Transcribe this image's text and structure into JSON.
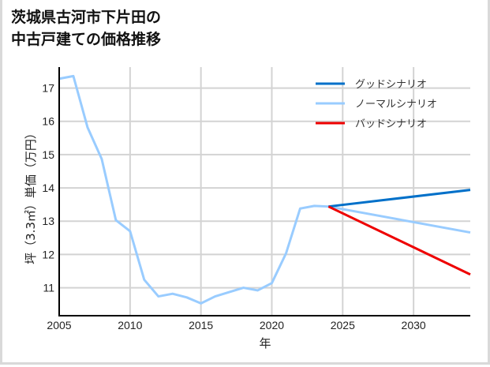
{
  "title": {
    "line1": "茨城県古河市下片田の",
    "line2": "中古戸建ての価格推移"
  },
  "axes": {
    "xlabel": "年",
    "ylabel": "坪（3.3㎡）単価（万円）"
  },
  "legend": [
    {
      "label": "グッドシナリオ",
      "color": "#0070c9"
    },
    {
      "label": "ノーマルシナリオ",
      "color": "#99ccff"
    },
    {
      "label": "バッドシナリオ",
      "color": "#ee0000"
    }
  ],
  "chart_data": {
    "type": "line",
    "title": "茨城県古河市下片田の中古戸建ての価格推移",
    "xlabel": "年",
    "ylabel": "坪（3.3㎡）単価（万円）",
    "xlim": [
      2005,
      2034
    ],
    "ylim": [
      10.16,
      17.63
    ],
    "xticks": [
      2005,
      2010,
      2015,
      2020,
      2025,
      2030
    ],
    "yticks": [
      11,
      12,
      13,
      14,
      15,
      16,
      17
    ],
    "grid": true,
    "legend_position": "upper right",
    "series": [
      {
        "name": "ノーマルシナリオ",
        "color": "#99ccff",
        "x": [
          2005,
          2006,
          2007,
          2008,
          2009,
          2010,
          2011,
          2012,
          2013,
          2014,
          2015,
          2016,
          2017,
          2018,
          2019,
          2020,
          2021,
          2022,
          2023,
          2024,
          2034
        ],
        "values": [
          17.28,
          17.36,
          15.82,
          14.87,
          13.03,
          12.7,
          11.24,
          10.74,
          10.82,
          10.71,
          10.53,
          10.74,
          10.87,
          11.0,
          10.92,
          11.14,
          12.03,
          13.38,
          13.46,
          13.44,
          12.66
        ]
      },
      {
        "name": "グッドシナリオ",
        "color": "#0070c9",
        "x": [
          2024,
          2034
        ],
        "values": [
          13.44,
          13.94
        ]
      },
      {
        "name": "バッドシナリオ",
        "color": "#ee0000",
        "x": [
          2024,
          2034
        ],
        "values": [
          13.44,
          11.4
        ]
      }
    ]
  }
}
